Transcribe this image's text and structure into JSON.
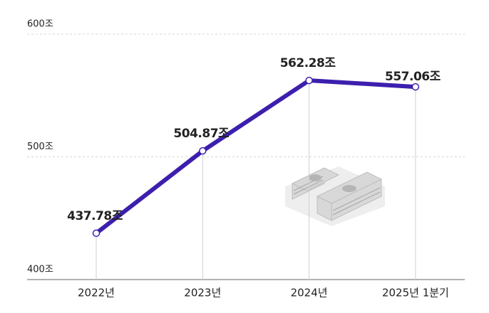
{
  "chart_data": {
    "type": "line",
    "categories": [
      "2022년",
      "2023년",
      "2024년",
      "2025년 1분기"
    ],
    "values": [
      437.78,
      504.87,
      562.28,
      557.06
    ],
    "value_labels": [
      "437.78조",
      "504.87조",
      "562.28조",
      "557.06조"
    ],
    "color": "#3d1fae",
    "ylim": [
      400,
      600
    ],
    "yticks": [
      {
        "value": 400,
        "label": "400조"
      },
      {
        "value": 500,
        "label": "500조"
      },
      {
        "value": 600,
        "label": "600조"
      }
    ],
    "grid": true
  }
}
